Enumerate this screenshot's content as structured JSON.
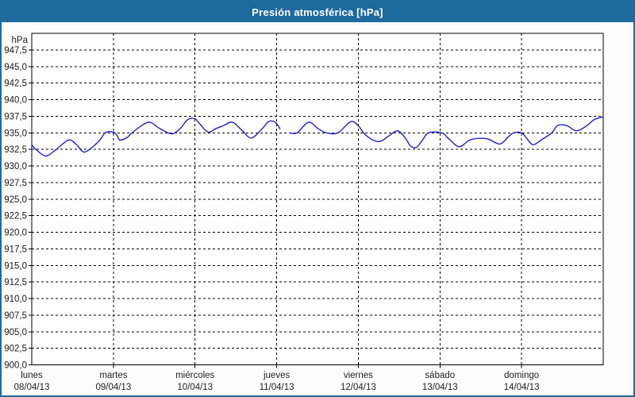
{
  "window": {
    "title": "Presión atmosférica [hPa]"
  },
  "colors": {
    "titlebar_bg": "#1e6a9f",
    "titlebar_text": "#ffffff",
    "frame_border": "#1e6a9f",
    "plot_bg": "#ffffff",
    "grid": "#000000",
    "axis": "#000000",
    "text": "#1c1c1c",
    "line": "#2121c8"
  },
  "chart_data": {
    "type": "line",
    "title": "Presión atmosférica [hPa]",
    "y_unit_label": "hPa",
    "ylim": [
      900,
      950
    ],
    "y_tick_step": 2.5,
    "grid": "dashed, horizontal every 2.5 hPa and vertical every day",
    "legend": "none",
    "y_tick_labels": [
      "947,5",
      "945,0",
      "942,5",
      "940,0",
      "937,5",
      "935,0",
      "932,5",
      "930,0",
      "927,5",
      "925,0",
      "922,5",
      "920,0",
      "917,5",
      "915,0",
      "912,5",
      "910,0",
      "907,5",
      "905,0",
      "902,5",
      "900,0"
    ],
    "y_tick_values": [
      947.5,
      945.0,
      942.5,
      940.0,
      937.5,
      935.0,
      932.5,
      930.0,
      927.5,
      925.0,
      922.5,
      920.0,
      917.5,
      915.0,
      912.5,
      910.0,
      907.5,
      905.0,
      902.5,
      900.0
    ],
    "x_days": [
      {
        "name": "lunes",
        "date": "08/04/13"
      },
      {
        "name": "martes",
        "date": "09/04/13"
      },
      {
        "name": "miércoles",
        "date": "10/04/13"
      },
      {
        "name": "jueves",
        "date": "11/04/13"
      },
      {
        "name": "viernes",
        "date": "12/04/13"
      },
      {
        "name": "sábado",
        "date": "13/04/13"
      },
      {
        "name": "domingo",
        "date": "14/04/13"
      }
    ],
    "x_axis_days_total": 7,
    "series": [
      {
        "name": "Presión atmosférica",
        "color": "#2121c8",
        "x_unit": "days since lunes 08/04/13 00:00",
        "y_unit": "hPa",
        "segments": [
          [
            [
              0.0,
              933.2
            ],
            [
              0.05,
              932.5
            ],
            [
              0.17,
              931.5
            ],
            [
              0.29,
              932.4
            ],
            [
              0.45,
              933.9
            ],
            [
              0.55,
              933.2
            ],
            [
              0.65,
              932.1
            ],
            [
              0.82,
              933.7
            ],
            [
              0.9,
              935.0
            ],
            [
              1.0,
              935.1
            ],
            [
              1.05,
              934.5
            ],
            [
              1.08,
              933.9
            ],
            [
              1.17,
              934.3
            ],
            [
              1.22,
              934.9
            ],
            [
              1.36,
              936.2
            ],
            [
              1.45,
              936.6
            ],
            [
              1.56,
              935.7
            ],
            [
              1.67,
              935.0
            ],
            [
              1.74,
              934.9
            ],
            [
              1.83,
              935.8
            ],
            [
              1.91,
              937.0
            ],
            [
              2.0,
              937.1
            ],
            [
              2.06,
              936.3
            ],
            [
              2.16,
              935.1
            ],
            [
              2.25,
              935.6
            ],
            [
              2.35,
              936.1
            ],
            [
              2.46,
              936.6
            ],
            [
              2.58,
              935.3
            ],
            [
              2.69,
              934.2
            ],
            [
              2.82,
              935.6
            ],
            [
              2.9,
              936.7
            ],
            [
              2.97,
              936.7
            ],
            [
              3.01,
              936.2
            ],
            [
              3.04,
              935.6
            ]
          ],
          [
            [
              3.16,
              935.0
            ],
            [
              3.25,
              935.0
            ],
            [
              3.39,
              936.6
            ],
            [
              3.51,
              935.6
            ],
            [
              3.61,
              935.0
            ],
            [
              3.75,
              935.0
            ],
            [
              3.91,
              936.7
            ],
            [
              4.01,
              935.9
            ],
            [
              4.07,
              934.9
            ],
            [
              4.18,
              933.9
            ],
            [
              4.27,
              933.7
            ],
            [
              4.37,
              934.5
            ],
            [
              4.48,
              935.3
            ],
            [
              4.57,
              934.3
            ],
            [
              4.64,
              933.0
            ],
            [
              4.71,
              932.8
            ],
            [
              4.78,
              933.8
            ],
            [
              4.86,
              935.0
            ],
            [
              5.02,
              935.0
            ],
            [
              5.1,
              934.2
            ],
            [
              5.23,
              932.9
            ],
            [
              5.35,
              933.8
            ],
            [
              5.42,
              934.1
            ],
            [
              5.58,
              934.1
            ],
            [
              5.73,
              933.3
            ],
            [
              5.83,
              934.3
            ],
            [
              5.9,
              935.0
            ],
            [
              6.0,
              935.0
            ],
            [
              6.06,
              934.2
            ],
            [
              6.14,
              933.2
            ],
            [
              6.25,
              934.0
            ],
            [
              6.37,
              935.0
            ],
            [
              6.44,
              936.1
            ],
            [
              6.55,
              936.1
            ],
            [
              6.67,
              935.3
            ],
            [
              6.79,
              936.0
            ],
            [
              6.89,
              937.0
            ],
            [
              7.0,
              937.4
            ]
          ]
        ]
      }
    ]
  }
}
